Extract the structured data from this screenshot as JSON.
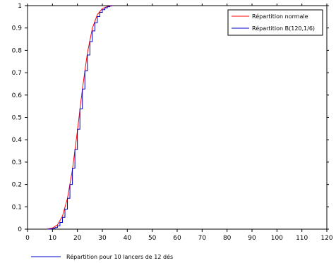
{
  "chart_data": {
    "type": "line",
    "xlim": [
      0,
      120
    ],
    "ylim": [
      0,
      1
    ],
    "x_ticks": [
      0,
      10,
      20,
      30,
      40,
      50,
      60,
      70,
      80,
      90,
      100,
      110,
      120
    ],
    "y_ticks": [
      0,
      0.1,
      0.2,
      0.3,
      0.4,
      0.5,
      0.6,
      0.7,
      0.8,
      0.9,
      1
    ],
    "grid": false,
    "legend_position": "top-right",
    "series": [
      {
        "name": "Répartition normale",
        "color": "#ff0000",
        "style": "line",
        "x": [
          8,
          10,
          12,
          14,
          16,
          18,
          20,
          22,
          24,
          26,
          28,
          30,
          32,
          34
        ],
        "y": [
          0.001,
          0.005,
          0.019,
          0.058,
          0.137,
          0.266,
          0.44,
          0.627,
          0.788,
          0.899,
          0.96,
          0.987,
          0.996,
          0.999
        ]
      },
      {
        "name": "Répartition B(120,1/6)",
        "color": "#0000c8",
        "style": "step",
        "x": [
          8,
          9,
          10,
          11,
          12,
          13,
          14,
          15,
          16,
          17,
          18,
          19,
          20,
          21,
          22,
          23,
          24,
          25,
          26,
          27,
          28,
          29,
          30,
          31,
          32,
          33
        ],
        "y": [
          0.0,
          0.001,
          0.003,
          0.007,
          0.015,
          0.03,
          0.053,
          0.089,
          0.138,
          0.2,
          0.273,
          0.356,
          0.447,
          0.538,
          0.627,
          0.708,
          0.779,
          0.839,
          0.887,
          0.924,
          0.951,
          0.97,
          0.982,
          0.99,
          0.995,
          1.0
        ]
      }
    ]
  },
  "caption": {
    "text": "Répartition pour 10 lancers de 12 dés",
    "color": "#0000c8"
  }
}
